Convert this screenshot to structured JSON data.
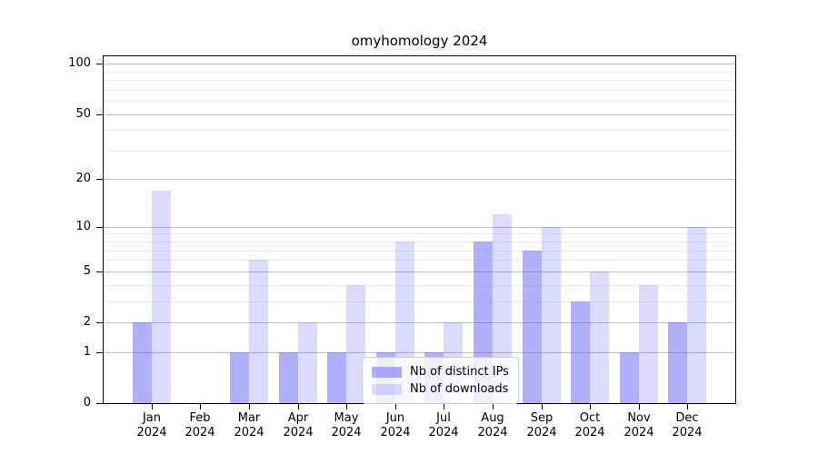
{
  "title": "omyhomology 2024",
  "legend": {
    "entries": [
      {
        "label": "Nb of distinct IPs"
      },
      {
        "label": "Nb of downloads"
      }
    ]
  },
  "chart_data": {
    "type": "bar",
    "title": "omyhomology 2024",
    "categories": [
      "Jan 2024",
      "Feb 2024",
      "Mar 2024",
      "Apr 2024",
      "May 2024",
      "Jun 2024",
      "Jul 2024",
      "Aug 2024",
      "Sep 2024",
      "Oct 2024",
      "Nov 2024",
      "Dec 2024"
    ],
    "series": [
      {
        "name": "Nb of distinct IPs",
        "values": [
          2,
          0,
          1,
          1,
          1,
          1,
          1,
          8,
          7,
          3,
          1,
          2
        ],
        "color": "#4d4df5",
        "alpha": 0.45
      },
      {
        "name": "Nb of downloads",
        "values": [
          17,
          0,
          6,
          2,
          4,
          8,
          2,
          12,
          10,
          5,
          4,
          10
        ],
        "color": "#4d4df5",
        "alpha": 0.2
      }
    ],
    "xlabel": "",
    "ylabel": "",
    "yscale": "log1p",
    "ylim": [
      0,
      114
    ],
    "y_ticks": [
      0,
      1,
      2,
      5,
      10,
      20,
      50,
      100
    ],
    "y_minor_ticks": [
      3,
      4,
      6,
      7,
      8,
      9,
      30,
      40,
      60,
      70,
      80,
      90
    ],
    "grid": "horizontal",
    "legend_position": "lower-center-inside",
    "colors": {
      "bar_ips_rendered": "#afaffb",
      "bar_downloads_rendered": "#dbdbfa",
      "major_grid": "#bdbdbd",
      "minor_grid": "#ebebeb",
      "axis": "#000000",
      "background": "#ffffff"
    }
  }
}
